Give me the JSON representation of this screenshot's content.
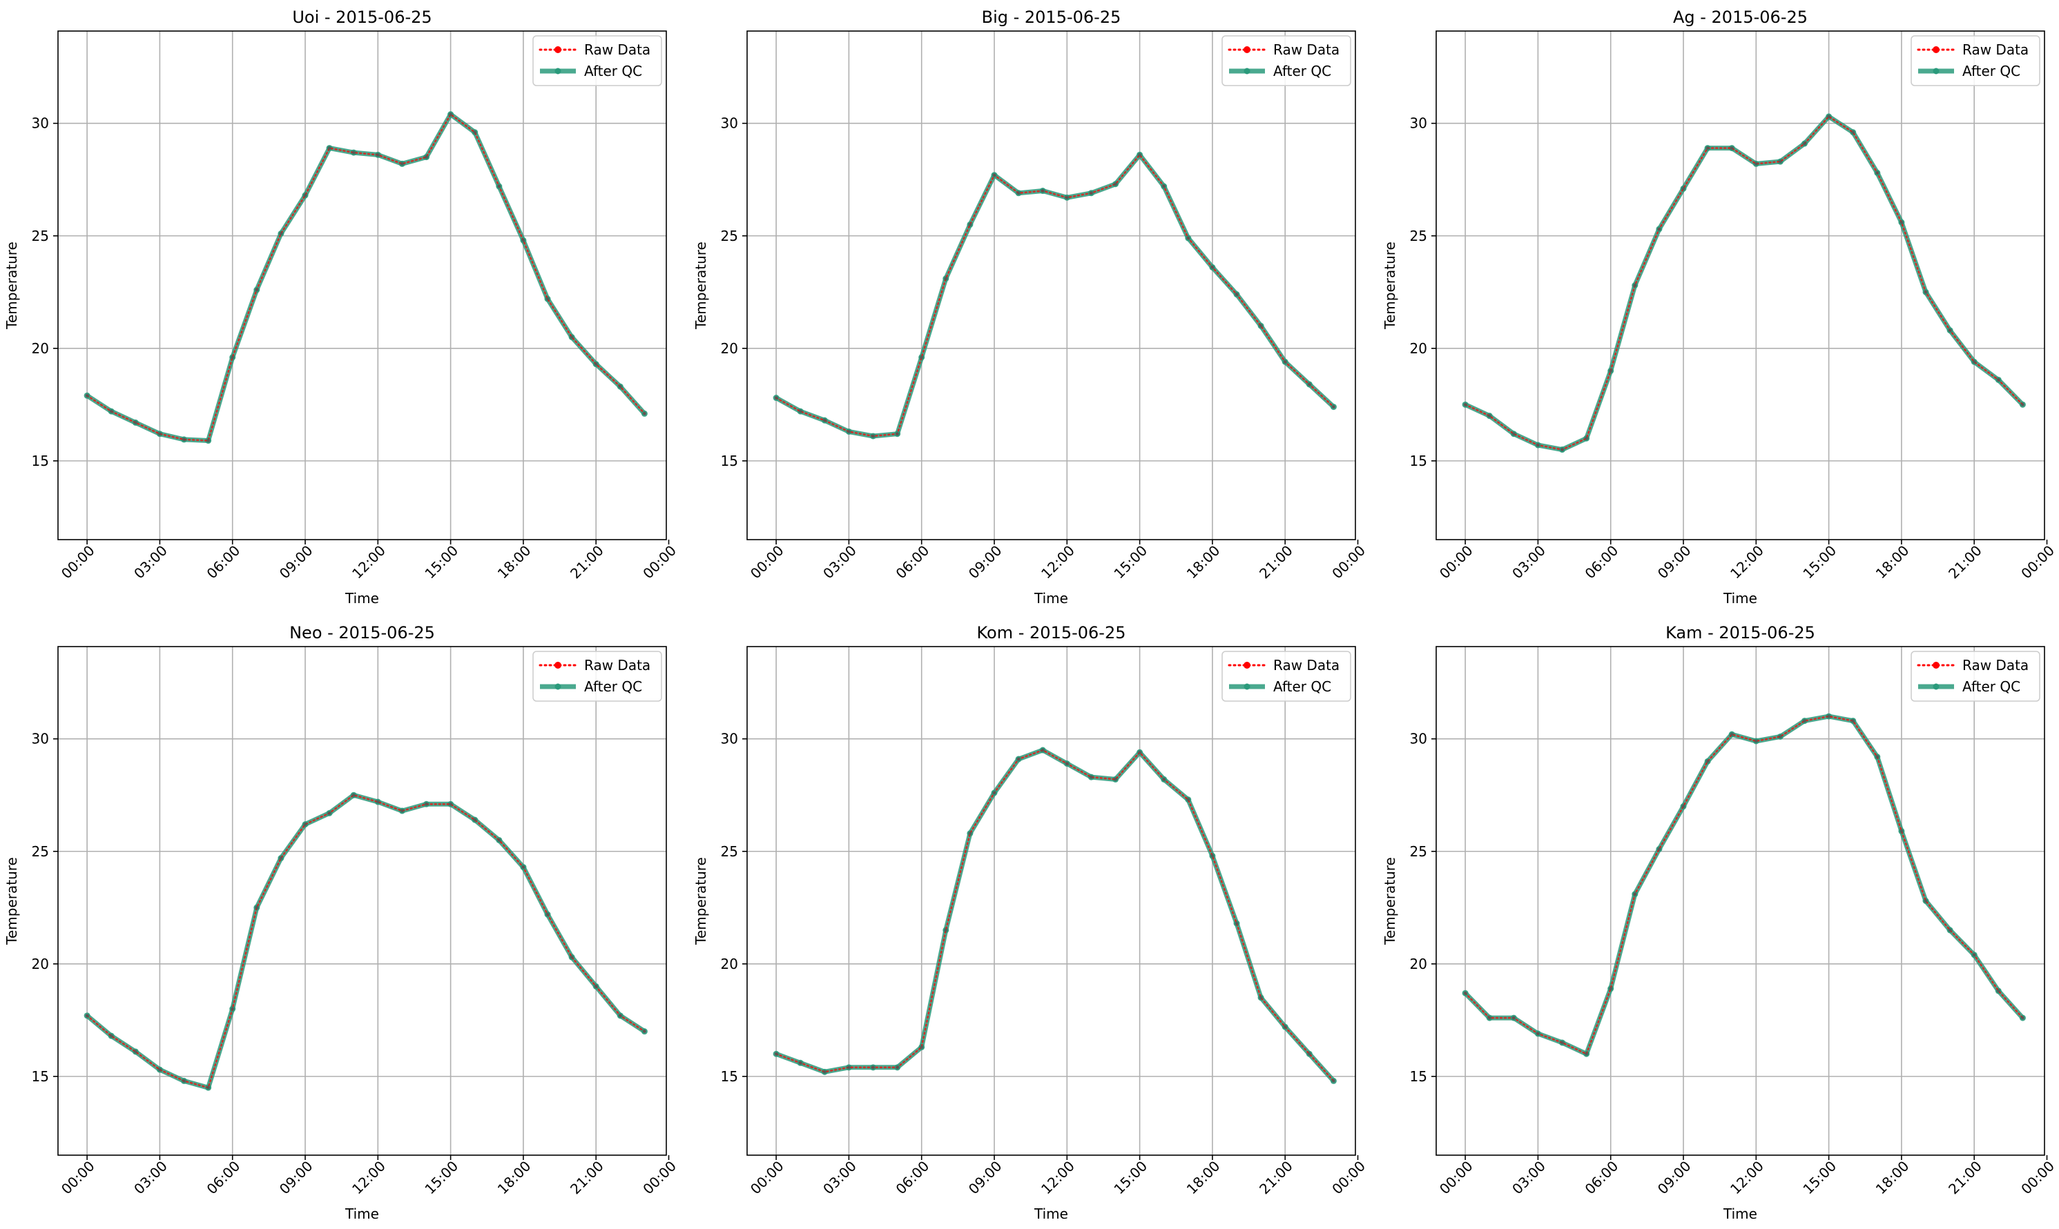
{
  "chart_data": [
    {
      "type": "line",
      "title": "Uoi - 2015-06-25",
      "xlabel": "Time",
      "ylabel": "Temperature",
      "ylim": [
        11.5,
        34.1
      ],
      "xlim": [
        -1.2,
        23.9
      ],
      "x_ticks": [
        0,
        3,
        6,
        9,
        12,
        15,
        18,
        21,
        24
      ],
      "x_tick_labels": [
        "00:00",
        "03:00",
        "06:00",
        "09:00",
        "12:00",
        "15:00",
        "18:00",
        "21:00",
        "00:00"
      ],
      "y_ticks": [
        15,
        20,
        25,
        30
      ],
      "grid": true,
      "legend_position": "top-right",
      "x": [
        0,
        1,
        2,
        3,
        4,
        5,
        6,
        7,
        8,
        9,
        10,
        11,
        12,
        13,
        14,
        15,
        16,
        17,
        18,
        19,
        20,
        21,
        22,
        23
      ],
      "series": [
        {
          "name": "Raw Data",
          "color": "#ff0000",
          "style": "dotted",
          "values": [
            17.9,
            17.2,
            16.7,
            16.2,
            15.95,
            15.9,
            19.6,
            22.6,
            25.1,
            26.8,
            28.9,
            28.7,
            28.6,
            28.2,
            28.5,
            30.4,
            29.6,
            27.2,
            24.8,
            22.2,
            20.5,
            19.3,
            18.3,
            17.1
          ]
        },
        {
          "name": "After QC",
          "color": "#2a9a7b",
          "style": "solid",
          "values": [
            17.9,
            17.2,
            16.7,
            16.2,
            15.95,
            15.9,
            19.6,
            22.6,
            25.1,
            26.8,
            28.9,
            28.7,
            28.6,
            28.2,
            28.5,
            30.4,
            29.6,
            27.2,
            24.8,
            22.2,
            20.5,
            19.3,
            18.3,
            17.1
          ]
        }
      ]
    },
    {
      "type": "line",
      "title": "Big - 2015-06-25",
      "xlabel": "Time",
      "ylabel": "Temperature",
      "ylim": [
        11.5,
        34.1
      ],
      "xlim": [
        -1.2,
        23.9
      ],
      "x_ticks": [
        0,
        3,
        6,
        9,
        12,
        15,
        18,
        21,
        24
      ],
      "x_tick_labels": [
        "00:00",
        "03:00",
        "06:00",
        "09:00",
        "12:00",
        "15:00",
        "18:00",
        "21:00",
        "00:00"
      ],
      "y_ticks": [
        15,
        20,
        25,
        30
      ],
      "grid": true,
      "legend_position": "top-right",
      "x": [
        0,
        1,
        2,
        3,
        4,
        5,
        6,
        7,
        8,
        9,
        10,
        11,
        12,
        13,
        14,
        15,
        16,
        17,
        18,
        19,
        20,
        21,
        22,
        23
      ],
      "series": [
        {
          "name": "Raw Data",
          "color": "#ff0000",
          "style": "dotted",
          "values": [
            17.8,
            17.2,
            16.8,
            16.3,
            16.1,
            16.2,
            19.6,
            23.1,
            25.5,
            27.7,
            26.9,
            27.0,
            26.7,
            26.9,
            27.3,
            28.6,
            27.2,
            24.9,
            23.6,
            22.4,
            21.0,
            19.4,
            18.4,
            17.4
          ]
        },
        {
          "name": "After QC",
          "color": "#2a9a7b",
          "style": "solid",
          "values": [
            17.8,
            17.2,
            16.8,
            16.3,
            16.1,
            16.2,
            19.6,
            23.1,
            25.5,
            27.7,
            26.9,
            27.0,
            26.7,
            26.9,
            27.3,
            28.6,
            27.2,
            24.9,
            23.6,
            22.4,
            21.0,
            19.4,
            18.4,
            17.4
          ]
        }
      ]
    },
    {
      "type": "line",
      "title": "Ag - 2015-06-25",
      "xlabel": "Time",
      "ylabel": "Temperature",
      "ylim": [
        11.5,
        34.1
      ],
      "xlim": [
        -1.2,
        23.9
      ],
      "x_ticks": [
        0,
        3,
        6,
        9,
        12,
        15,
        18,
        21,
        24
      ],
      "x_tick_labels": [
        "00:00",
        "03:00",
        "06:00",
        "09:00",
        "12:00",
        "15:00",
        "18:00",
        "21:00",
        "00:00"
      ],
      "y_ticks": [
        15,
        20,
        25,
        30
      ],
      "grid": true,
      "legend_position": "top-right",
      "x": [
        0,
        1,
        2,
        3,
        4,
        5,
        6,
        7,
        8,
        9,
        10,
        11,
        12,
        13,
        14,
        15,
        16,
        17,
        18,
        19,
        20,
        21,
        22,
        23
      ],
      "series": [
        {
          "name": "Raw Data",
          "color": "#ff0000",
          "style": "dotted",
          "values": [
            17.5,
            17.0,
            16.2,
            15.7,
            15.5,
            16.0,
            19.0,
            22.8,
            25.3,
            27.1,
            28.9,
            28.9,
            28.2,
            28.3,
            29.1,
            30.3,
            29.6,
            27.8,
            25.6,
            22.5,
            20.8,
            19.4,
            18.6,
            17.5
          ]
        },
        {
          "name": "After QC",
          "color": "#2a9a7b",
          "style": "solid",
          "values": [
            17.5,
            17.0,
            16.2,
            15.7,
            15.5,
            16.0,
            19.0,
            22.8,
            25.3,
            27.1,
            28.9,
            28.9,
            28.2,
            28.3,
            29.1,
            30.3,
            29.6,
            27.8,
            25.6,
            22.5,
            20.8,
            19.4,
            18.6,
            17.5
          ]
        }
      ]
    },
    {
      "type": "line",
      "title": "Neo - 2015-06-25",
      "xlabel": "Time",
      "ylabel": "Temperature",
      "ylim": [
        11.5,
        34.1
      ],
      "xlim": [
        -1.2,
        23.9
      ],
      "x_ticks": [
        0,
        3,
        6,
        9,
        12,
        15,
        18,
        21,
        24
      ],
      "x_tick_labels": [
        "00:00",
        "03:00",
        "06:00",
        "09:00",
        "12:00",
        "15:00",
        "18:00",
        "21:00",
        "00:00"
      ],
      "y_ticks": [
        15,
        20,
        25,
        30
      ],
      "grid": true,
      "legend_position": "top-right",
      "x": [
        0,
        1,
        2,
        3,
        4,
        5,
        6,
        7,
        8,
        9,
        10,
        11,
        12,
        13,
        14,
        15,
        16,
        17,
        18,
        19,
        20,
        21,
        22,
        23
      ],
      "series": [
        {
          "name": "Raw Data",
          "color": "#ff0000",
          "style": "dotted",
          "values": [
            17.7,
            16.8,
            16.1,
            15.3,
            14.8,
            14.5,
            18.0,
            22.5,
            24.7,
            26.2,
            26.7,
            27.5,
            27.2,
            26.8,
            27.1,
            27.1,
            26.4,
            25.5,
            24.3,
            22.2,
            20.3,
            19.0,
            17.7,
            17.0
          ]
        },
        {
          "name": "After QC",
          "color": "#2a9a7b",
          "style": "solid",
          "values": [
            17.7,
            16.8,
            16.1,
            15.3,
            14.8,
            14.5,
            18.0,
            22.5,
            24.7,
            26.2,
            26.7,
            27.5,
            27.2,
            26.8,
            27.1,
            27.1,
            26.4,
            25.5,
            24.3,
            22.2,
            20.3,
            19.0,
            17.7,
            17.0
          ]
        }
      ]
    },
    {
      "type": "line",
      "title": "Kom - 2015-06-25",
      "xlabel": "Time",
      "ylabel": "Temperature",
      "ylim": [
        11.5,
        34.1
      ],
      "xlim": [
        -1.2,
        23.9
      ],
      "x_ticks": [
        0,
        3,
        6,
        9,
        12,
        15,
        18,
        21,
        24
      ],
      "x_tick_labels": [
        "00:00",
        "03:00",
        "06:00",
        "09:00",
        "12:00",
        "15:00",
        "18:00",
        "21:00",
        "00:00"
      ],
      "y_ticks": [
        15,
        20,
        25,
        30
      ],
      "grid": true,
      "legend_position": "top-right",
      "x": [
        0,
        1,
        2,
        3,
        4,
        5,
        6,
        7,
        8,
        9,
        10,
        11,
        12,
        13,
        14,
        15,
        16,
        17,
        18,
        19,
        20,
        21,
        22,
        23
      ],
      "series": [
        {
          "name": "Raw Data",
          "color": "#ff0000",
          "style": "dotted",
          "values": [
            16.0,
            15.6,
            15.2,
            15.4,
            15.4,
            15.4,
            16.3,
            21.5,
            25.8,
            27.6,
            29.1,
            29.5,
            28.9,
            28.3,
            28.2,
            29.4,
            28.2,
            27.3,
            24.8,
            21.8,
            18.5,
            17.2,
            16.0,
            14.8
          ]
        },
        {
          "name": "After QC",
          "color": "#2a9a7b",
          "style": "solid",
          "values": [
            16.0,
            15.6,
            15.2,
            15.4,
            15.4,
            15.4,
            16.3,
            21.5,
            25.8,
            27.6,
            29.1,
            29.5,
            28.9,
            28.3,
            28.2,
            29.4,
            28.2,
            27.3,
            24.8,
            21.8,
            18.5,
            17.2,
            16.0,
            14.8
          ]
        }
      ]
    },
    {
      "type": "line",
      "title": "Kam - 2015-06-25",
      "xlabel": "Time",
      "ylabel": "Temperature",
      "ylim": [
        11.5,
        34.1
      ],
      "xlim": [
        -1.2,
        23.9
      ],
      "x_ticks": [
        0,
        3,
        6,
        9,
        12,
        15,
        18,
        21,
        24
      ],
      "x_tick_labels": [
        "00:00",
        "03:00",
        "06:00",
        "09:00",
        "12:00",
        "15:00",
        "18:00",
        "21:00",
        "00:00"
      ],
      "y_ticks": [
        15,
        20,
        25,
        30
      ],
      "grid": true,
      "legend_position": "top-right",
      "x": [
        0,
        1,
        2,
        3,
        4,
        5,
        6,
        7,
        8,
        9,
        10,
        11,
        12,
        13,
        14,
        15,
        16,
        17,
        18,
        19,
        20,
        21,
        22,
        23
      ],
      "series": [
        {
          "name": "Raw Data",
          "color": "#ff0000",
          "style": "dotted",
          "values": [
            18.7,
            17.6,
            17.6,
            16.9,
            16.5,
            16.0,
            18.9,
            23.1,
            25.1,
            27.0,
            29.0,
            30.2,
            29.9,
            30.1,
            30.8,
            31.0,
            30.8,
            29.2,
            25.9,
            22.8,
            21.5,
            20.4,
            18.8,
            17.6
          ]
        },
        {
          "name": "After QC",
          "color": "#2a9a7b",
          "style": "solid",
          "values": [
            18.7,
            17.6,
            17.6,
            16.9,
            16.5,
            16.0,
            18.9,
            23.1,
            25.1,
            27.0,
            29.0,
            30.2,
            29.9,
            30.1,
            30.8,
            31.0,
            30.8,
            29.2,
            25.9,
            22.8,
            21.5,
            20.4,
            18.8,
            17.6
          ]
        }
      ]
    }
  ]
}
